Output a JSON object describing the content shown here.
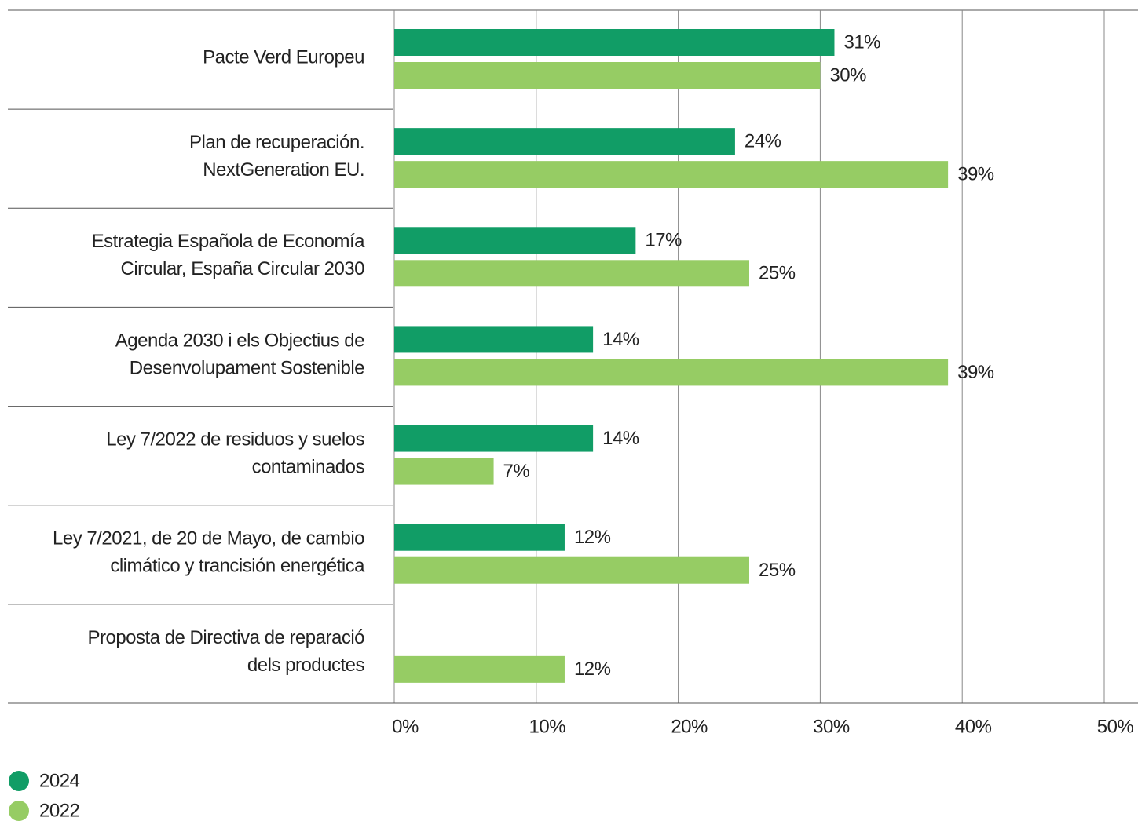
{
  "chart_data": {
    "type": "hbar",
    "categories": [
      [
        "Pacte Verd Europeu"
      ],
      [
        "Plan de recuperación.",
        "NextGeneration EU."
      ],
      [
        "Estrategia Española de Economía",
        "Circular, España Circular 2030"
      ],
      [
        "Agenda 2030 i els Objectius de",
        "Desenvolupament Sostenible"
      ],
      [
        "Ley 7/2022 de residuos y suelos",
        "contaminados"
      ],
      [
        "Ley 7/2021, de 20 de Mayo, de cambio",
        "climático y trancisión energética"
      ],
      [
        "Proposta de Directiva de reparació",
        "dels productes"
      ]
    ],
    "series": [
      {
        "name": "2024",
        "color": "#119d66",
        "values": [
          31,
          24,
          17,
          14,
          14,
          12,
          null
        ],
        "value_labels": [
          "31%",
          "24%",
          "17%",
          "14%",
          "14%",
          "12%",
          null
        ]
      },
      {
        "name": "2022",
        "color": "#96cc64",
        "values": [
          30,
          39,
          25,
          39,
          7,
          25,
          12
        ],
        "value_labels": [
          "30%",
          "39%",
          "25%",
          "39%",
          "7%",
          "25%",
          "12%"
        ]
      }
    ],
    "xlim": [
      0,
      50
    ],
    "xticks": [
      {
        "value": 0,
        "label": "0%"
      },
      {
        "value": 10,
        "label": "10%"
      },
      {
        "value": 20,
        "label": "20%"
      },
      {
        "value": 30,
        "label": "30%"
      },
      {
        "value": 40,
        "label": "40%"
      },
      {
        "value": 50,
        "label": "50%"
      }
    ],
    "grid": true
  }
}
